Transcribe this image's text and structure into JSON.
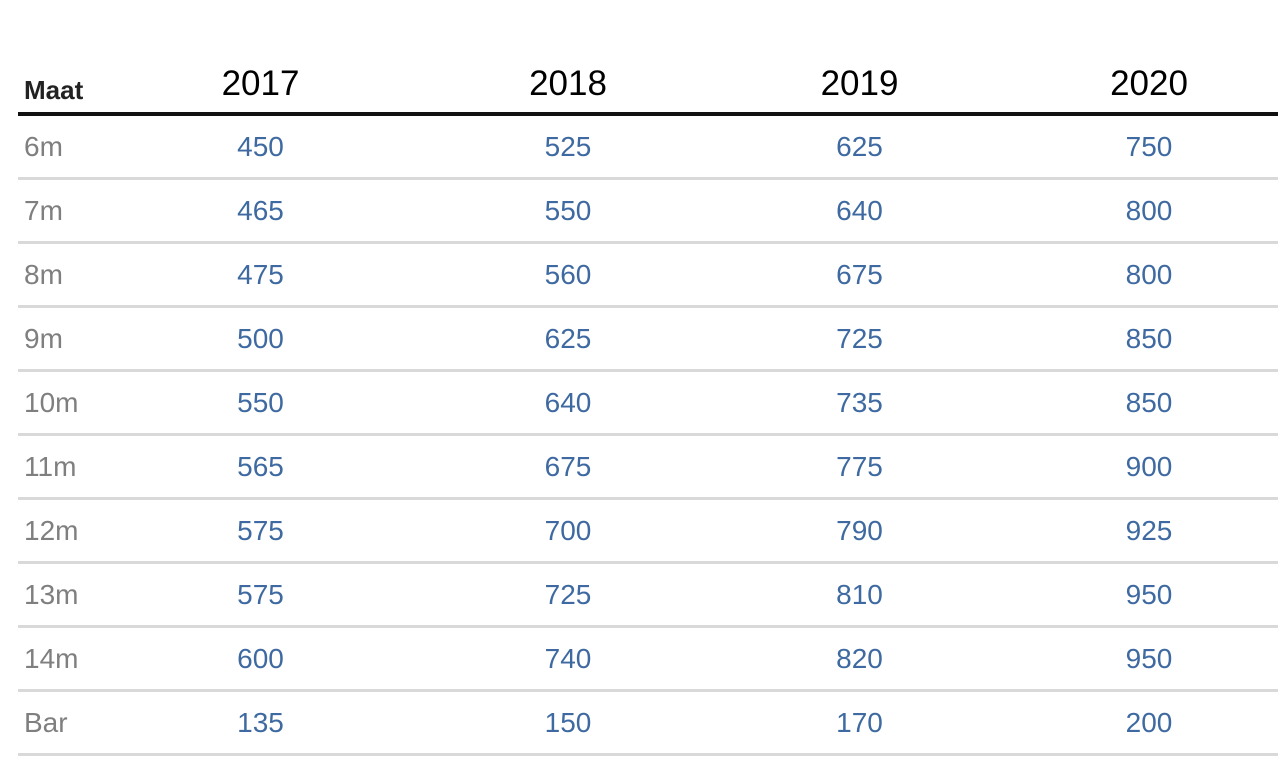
{
  "table": {
    "header": {
      "label": "Maat",
      "years": [
        "2017",
        "2018",
        "2019",
        "2020"
      ]
    },
    "rows": [
      {
        "size": "6m",
        "values": [
          "450",
          "525",
          "625",
          "750"
        ]
      },
      {
        "size": "7m",
        "values": [
          "465",
          "550",
          "640",
          "800"
        ]
      },
      {
        "size": "8m",
        "values": [
          "475",
          "560",
          "675",
          "800"
        ]
      },
      {
        "size": "9m",
        "values": [
          "500",
          "625",
          "725",
          "850"
        ]
      },
      {
        "size": "10m",
        "values": [
          "550",
          "640",
          "735",
          "850"
        ]
      },
      {
        "size": "11m",
        "values": [
          "565",
          "675",
          "775",
          "900"
        ]
      },
      {
        "size": "12m",
        "values": [
          "575",
          "700",
          "790",
          "925"
        ]
      },
      {
        "size": "13m",
        "values": [
          "575",
          "725",
          "810",
          "950"
        ]
      },
      {
        "size": "14m",
        "values": [
          "600",
          "740",
          "820",
          "950"
        ]
      },
      {
        "size": "Bar",
        "values": [
          "135",
          "150",
          "170",
          "200"
        ]
      }
    ]
  },
  "colors": {
    "header_text": "#000000",
    "size_text": "#7f7f7f",
    "value_text": "#3e6aa1",
    "header_rule": "#111111",
    "row_rule": "#d9d9d9"
  }
}
